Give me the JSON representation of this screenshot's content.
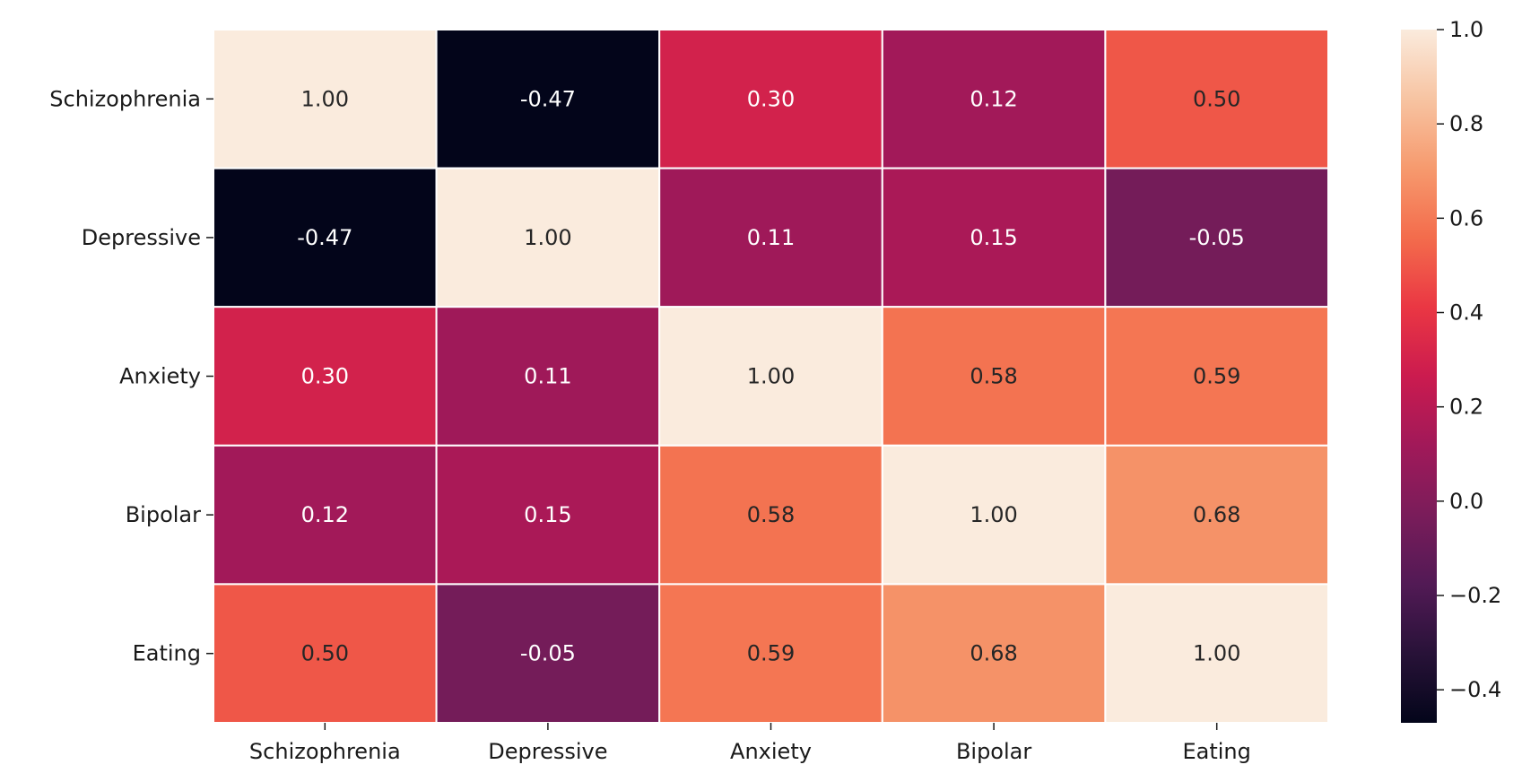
{
  "chart_data": {
    "type": "heatmap",
    "title": "",
    "xlabel": "",
    "ylabel": "",
    "rows": [
      "Schizophrenia",
      "Depressive",
      "Anxiety",
      "Bipolar",
      "Eating"
    ],
    "cols": [
      "Schizophrenia",
      "Depressive",
      "Anxiety",
      "Bipolar",
      "Eating"
    ],
    "values": [
      [
        1.0,
        -0.47,
        0.3,
        0.12,
        0.5
      ],
      [
        -0.47,
        1.0,
        0.11,
        0.15,
        -0.05
      ],
      [
        0.3,
        0.11,
        1.0,
        0.58,
        0.59
      ],
      [
        0.12,
        0.15,
        0.58,
        1.0,
        0.68
      ],
      [
        0.5,
        -0.05,
        0.59,
        0.68,
        1.0
      ]
    ],
    "annotation_format": "2 decimals",
    "colormap": "rocket",
    "colorbar": {
      "vmin": -0.47,
      "vmax": 1.0,
      "ticks": [
        1.0,
        0.8,
        0.6,
        0.4,
        0.2,
        0.0,
        -0.2,
        -0.4
      ],
      "tick_labels": [
        "1.0",
        "0.8",
        "0.6",
        "0.4",
        "0.2",
        "0.0",
        "−0.2",
        "−0.4"
      ],
      "position": "right"
    },
    "grid": false,
    "cell_border_color": "#ffffff"
  }
}
